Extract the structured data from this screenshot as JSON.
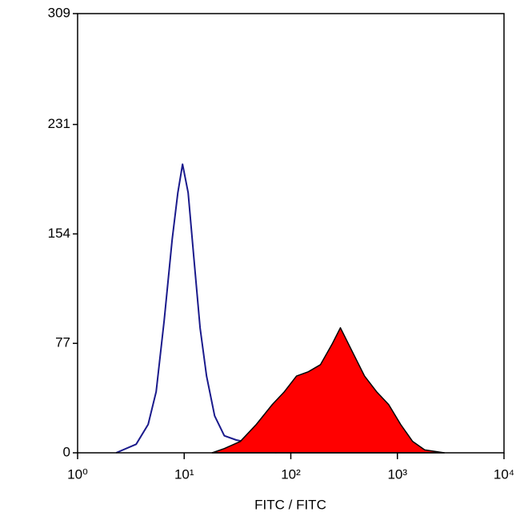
{
  "chart_data": {
    "type": "histogram-overlay",
    "x_label": "FITC / FITC",
    "xscale": "log",
    "xlim": [
      1,
      10000
    ],
    "xticks": [
      {
        "value": 1,
        "label": "10⁰"
      },
      {
        "value": 10,
        "label": "10¹"
      },
      {
        "value": 100,
        "label": "10²"
      },
      {
        "value": 1000,
        "label": "10³"
      },
      {
        "value": 10000,
        "label": "10⁴"
      }
    ],
    "ylim": [
      0,
      309
    ],
    "yticks": [
      0,
      77,
      154,
      231,
      309
    ],
    "series": [
      {
        "color": "#1a1a8c",
        "filled": false,
        "x": [
          2.3,
          3.54,
          4.59,
          5.46,
          6.49,
          7.71,
          8.71,
          9.66,
          10.9,
          12.3,
          14.1,
          16.2,
          19.3,
          23.8,
          30.8,
          47.5,
          73.3
        ],
        "values": [
          0,
          6,
          20,
          43,
          93,
          150,
          183,
          203,
          183,
          138,
          88,
          54,
          26,
          12,
          9,
          6,
          0
        ]
      },
      {
        "color": "#ff0000",
        "filled": true,
        "x": [
          18.3,
          23.8,
          33.6,
          47.5,
          67.1,
          87.1,
          113,
          146,
          190,
          246,
          292,
          379,
          492,
          638,
          827,
          1072,
          1390,
          1803,
          2754
        ],
        "values": [
          0,
          3,
          8,
          20,
          34,
          43,
          54,
          57,
          62,
          77,
          88,
          71,
          54,
          43,
          34,
          20,
          8,
          2,
          0
        ]
      }
    ]
  }
}
